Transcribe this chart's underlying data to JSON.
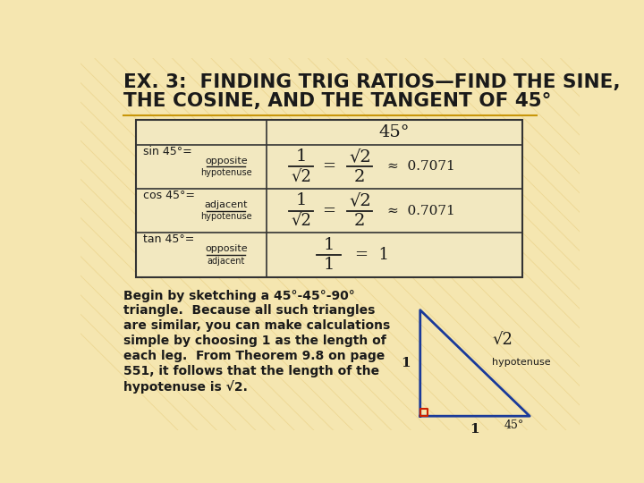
{
  "bg_color": "#f5e6b0",
  "title_line1": "EX. 3:  FINDING TRIG RATIOS—FIND THE SINE,",
  "title_line2": "THE COSINE, AND THE TANGENT OF 45°",
  "title_color": "#1a1a1a",
  "title_fontsize": 15.5,
  "table_border": "#333333",
  "table_bg": "#f2e8c0",
  "body_text_color": "#1a1a1a",
  "body_fontsize": 10,
  "stripe_color": "#e8cd80",
  "underline_color": "#c8960a",
  "triangle_edge_color": "#1a3a99",
  "triangle_right_angle_color": "#cc2200",
  "body_text_line1": "Begin by sketching a 45°-45°-90°",
  "body_text_line2": "triangle.  Because all such triangles",
  "body_text_line3": "are similar, you can make calculations",
  "body_text_line4": "simple by choosing 1 as the length of",
  "body_text_line5": "each leg.  From Theorem 9.8 on page",
  "body_text_line6": "551, it follows that the length of the",
  "body_text_line7": "hypotenuse is √2."
}
